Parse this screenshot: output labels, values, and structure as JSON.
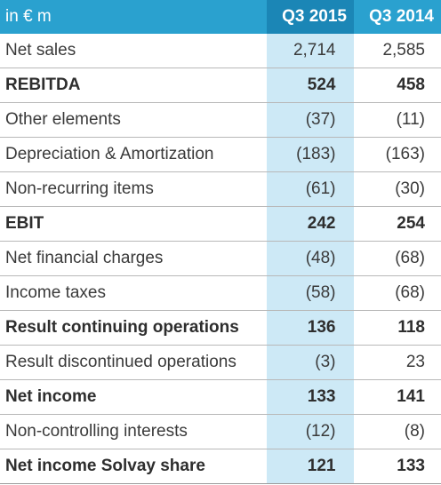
{
  "table": {
    "header": {
      "label": "in € m",
      "col1": "Q3 2015",
      "col2": "Q3 2014"
    },
    "rows": [
      {
        "label": "Net sales",
        "q3_2015": "2,714",
        "q3_2014": "2,585",
        "bold": false
      },
      {
        "label": "REBITDA",
        "q3_2015": "524",
        "q3_2014": "458",
        "bold": true
      },
      {
        "label": "Other elements",
        "q3_2015": "(37)",
        "q3_2014": "(11)",
        "bold": false
      },
      {
        "label": "Depreciation & Amortization",
        "q3_2015": "(183)",
        "q3_2014": "(163)",
        "bold": false
      },
      {
        "label": "Non-recurring items",
        "q3_2015": "(61)",
        "q3_2014": "(30)",
        "bold": false
      },
      {
        "label": "EBIT",
        "q3_2015": "242",
        "q3_2014": "254",
        "bold": true
      },
      {
        "label": "Net financial charges",
        "q3_2015": "(48)",
        "q3_2014": "(68)",
        "bold": false
      },
      {
        "label": "Income taxes",
        "q3_2015": "(58)",
        "q3_2014": "(68)",
        "bold": false
      },
      {
        "label": "Result continuing operations",
        "q3_2015": "136",
        "q3_2014": "118",
        "bold": true
      },
      {
        "label": "Result discontinued operations",
        "q3_2015": "(3)",
        "q3_2014": "23",
        "bold": false
      },
      {
        "label": "Net income",
        "q3_2015": "133",
        "q3_2014": "141",
        "bold": true
      },
      {
        "label": "Non-controlling interests",
        "q3_2015": "(12)",
        "q3_2014": "(8)",
        "bold": false
      },
      {
        "label": "Net income Solvay share",
        "q3_2015": "121",
        "q3_2014": "133",
        "bold": true
      }
    ]
  }
}
